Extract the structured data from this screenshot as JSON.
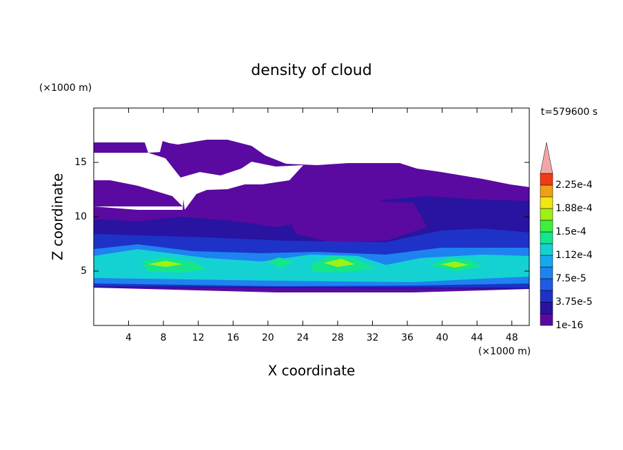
{
  "chart_data": {
    "type": "contour",
    "title": "density of cloud",
    "x_label": "X coordinate",
    "y_label": "Z coordinate",
    "x_unit": "(×1000 m)",
    "y_unit": "(×1000 m)",
    "annotation": "t=579600 s",
    "xlim": [
      0,
      50
    ],
    "xticks": [
      4,
      8,
      12,
      16,
      20,
      24,
      28,
      32,
      36,
      40,
      44,
      48
    ],
    "ylim": [
      0,
      20
    ],
    "yticks": [
      5,
      10,
      15
    ],
    "colorbar": {
      "colors": [
        "#5a0aa0",
        "#2814a0",
        "#1e32c8",
        "#1e5ae6",
        "#1e82f0",
        "#14aaf0",
        "#14d2d2",
        "#14e68c",
        "#3cf03c",
        "#a0f014",
        "#f0e614",
        "#f0a014",
        "#f03c14"
      ],
      "over_color": "#f4a6a6",
      "labels": [
        "1e-16",
        "3.75e-5",
        "7.5e-5",
        "1.12e-4",
        "1.5e-4",
        "1.88e-4",
        "2.25e-4"
      ]
    }
  }
}
